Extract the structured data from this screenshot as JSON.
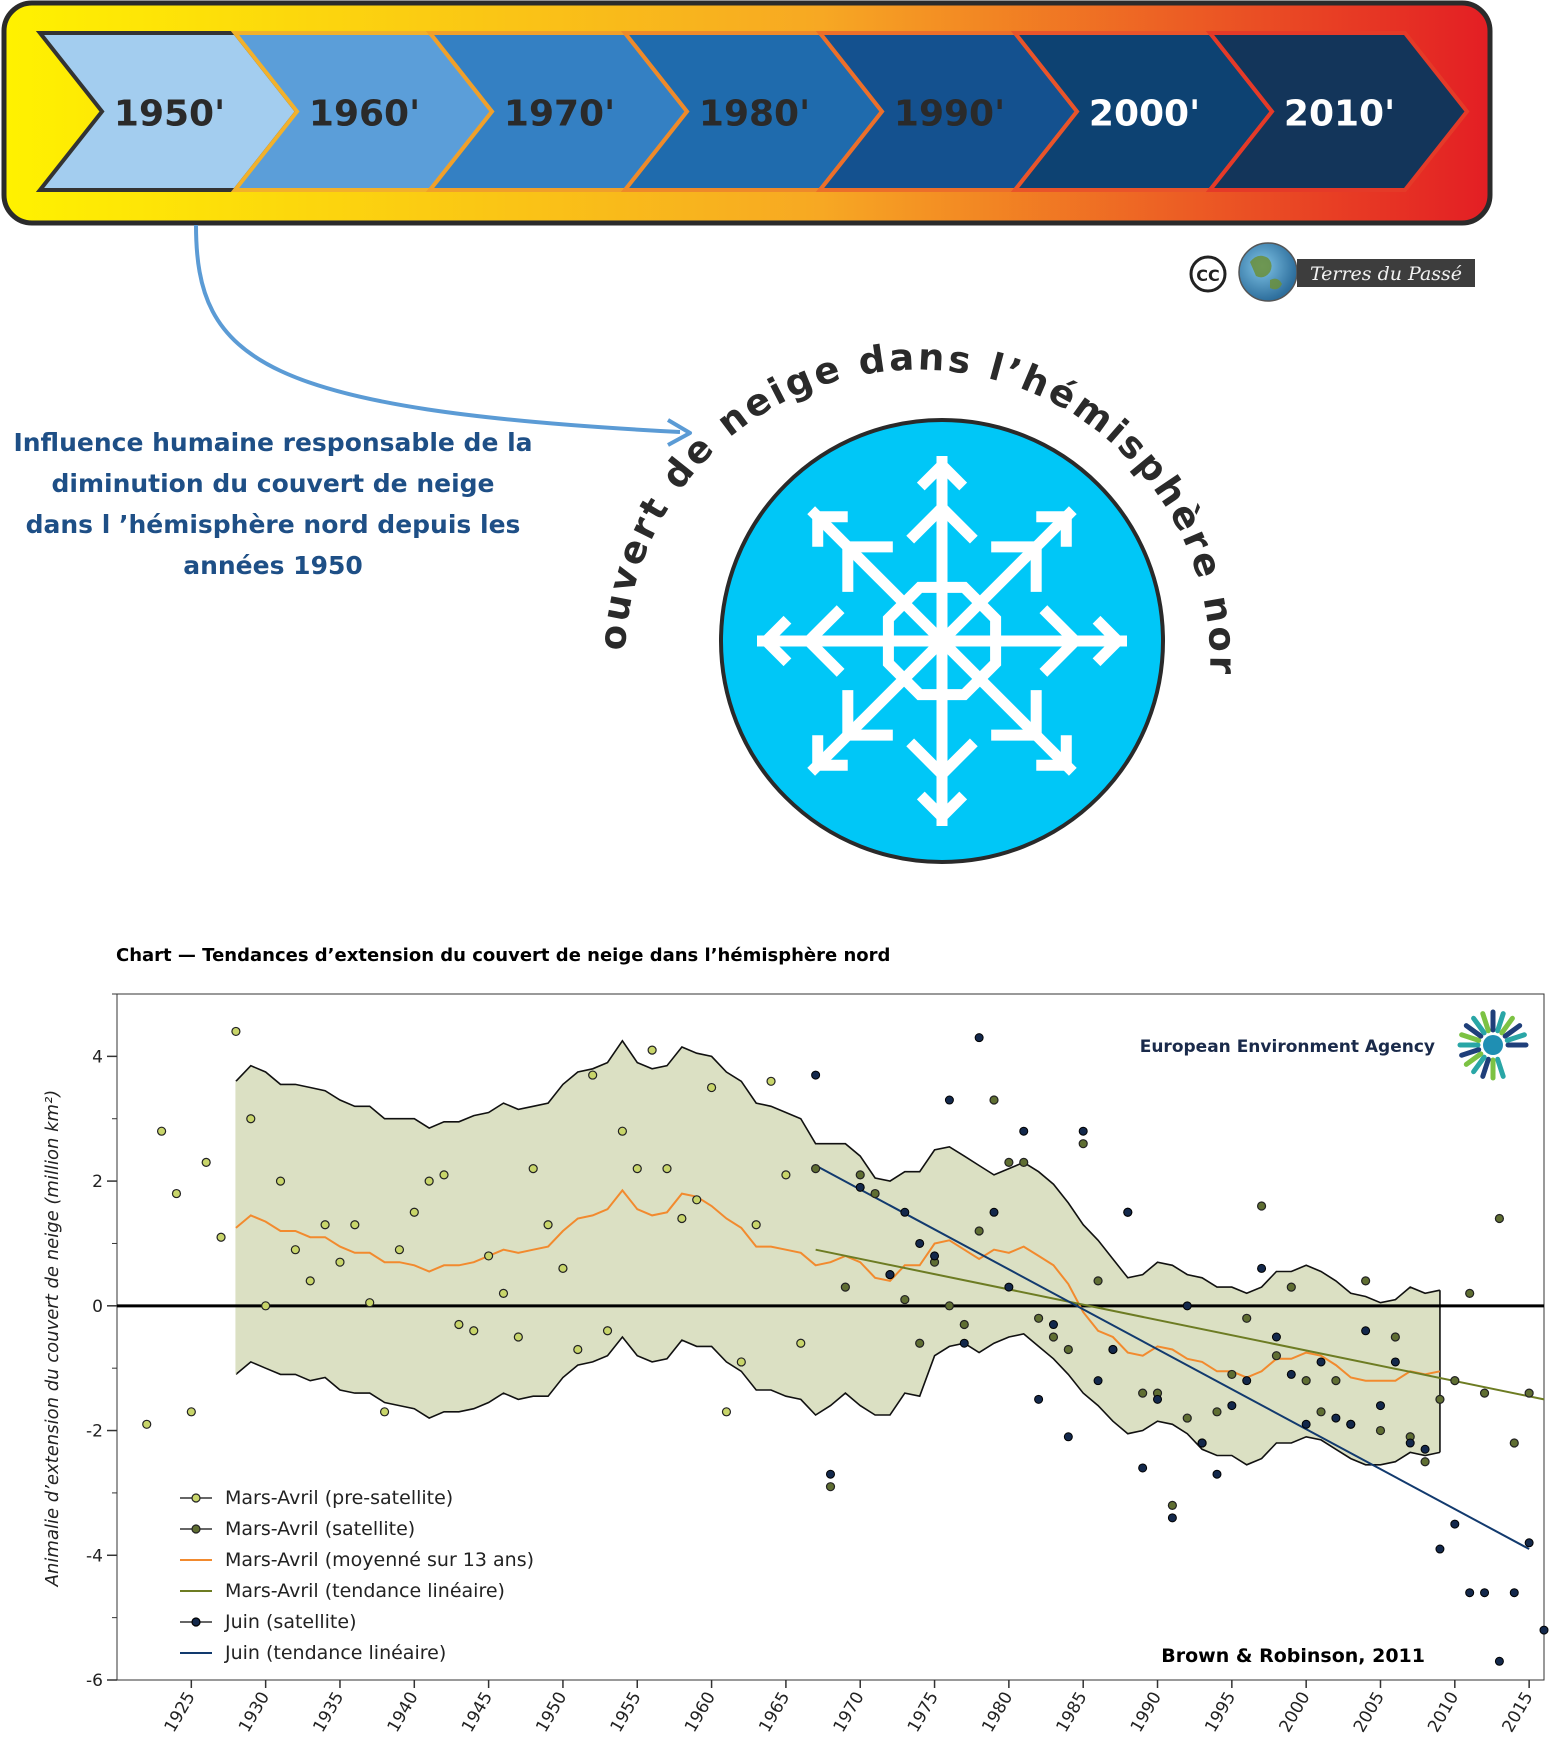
{
  "timeline": {
    "decades": [
      "1950'",
      "1960'",
      "1970'",
      "1980'",
      "1990'",
      "2000'",
      "2010'"
    ],
    "highlighted": "1950'"
  },
  "attribution": {
    "cc_mark": "CC",
    "brand": "Terres du Passé"
  },
  "statement": {
    "lines": [
      "Influence humaine responsable de la",
      "diminution du couvert de neige",
      "dans l ’hémisphère nord depuis les",
      "années 1950"
    ]
  },
  "badge": {
    "arc_text": "Couvert de neige dans l’hémisphère nord",
    "icon": "snowflake-icon"
  },
  "colors": {
    "decade_fills": [
      "#a3cdef",
      "#5b9ed9",
      "#3480c3",
      "#1f6bad",
      "#14518f",
      "#0d4272",
      "#13355a"
    ],
    "gradient": [
      "#fff200",
      "#f7a823",
      "#e31e24"
    ],
    "badge_circle": "#00c7f7",
    "statement_text": "#1e4f86",
    "band_fill": "#dbe0c3",
    "moving_avg": "#f28a2e",
    "ma_trend": "#6d7c23",
    "june_trend": "#123a6e",
    "presat_marker": "#c8d56a",
    "sat_marker": "#5f6e32",
    "june_marker": "#13284b"
  },
  "chart_data": {
    "type": "scatter",
    "title": "Chart — Tendances d’extension du couvert de neige dans l’hémisphère nord",
    "ylabel": "Animalie d’extension du couvert de neige (million km²)",
    "xlabel": "",
    "xlim": [
      1920,
      2016
    ],
    "ylim": [
      -6,
      5
    ],
    "x_ticks": [
      1925,
      1930,
      1935,
      1940,
      1945,
      1950,
      1955,
      1960,
      1965,
      1970,
      1975,
      1980,
      1985,
      1990,
      1995,
      2000,
      2005,
      2010,
      2015
    ],
    "y_ticks": [
      -6,
      -4,
      -2,
      0,
      2,
      4
    ],
    "source_logo": "European Environment Agency",
    "citation": "Brown & Robinson, 2011",
    "legend_position": "bottom-left",
    "legend": [
      "Mars-Avril (pre-satellite)",
      "Mars-Avril (satellite)",
      "Mars-Avril (moyenné sur 13 ans)",
      "Mars-Avril (tendance linéaire)",
      "Juin (satellite)",
      "Juin (tendance linéaire)"
    ],
    "march_april_presat": [
      [
        1922,
        -1.9
      ],
      [
        1923,
        2.8
      ],
      [
        1924,
        1.8
      ],
      [
        1925,
        -1.7
      ],
      [
        1926,
        2.3
      ],
      [
        1927,
        1.1
      ],
      [
        1928,
        4.4
      ],
      [
        1929,
        3.0
      ],
      [
        1930,
        0.0
      ],
      [
        1931,
        2.0
      ],
      [
        1932,
        0.9
      ],
      [
        1933,
        0.4
      ],
      [
        1934,
        1.3
      ],
      [
        1935,
        0.7
      ],
      [
        1936,
        1.3
      ],
      [
        1937,
        0.05
      ],
      [
        1938,
        -1.7
      ],
      [
        1939,
        0.9
      ],
      [
        1940,
        1.5
      ],
      [
        1941,
        2.0
      ],
      [
        1942,
        2.1
      ],
      [
        1943,
        -0.3
      ],
      [
        1944,
        -0.4
      ],
      [
        1945,
        0.8
      ],
      [
        1946,
        0.2
      ],
      [
        1947,
        -0.5
      ],
      [
        1948,
        2.2
      ],
      [
        1949,
        1.3
      ],
      [
        1950,
        0.6
      ],
      [
        1951,
        -0.7
      ],
      [
        1952,
        3.7
      ],
      [
        1953,
        -0.4
      ],
      [
        1954,
        2.8
      ],
      [
        1955,
        2.2
      ],
      [
        1956,
        4.1
      ],
      [
        1957,
        2.2
      ],
      [
        1958,
        1.4
      ],
      [
        1959,
        1.7
      ],
      [
        1960,
        3.5
      ],
      [
        1961,
        -1.7
      ],
      [
        1962,
        -0.9
      ],
      [
        1963,
        1.3
      ],
      [
        1964,
        3.6
      ],
      [
        1965,
        2.1
      ],
      [
        1966,
        -0.6
      ]
    ],
    "march_april_sat": [
      [
        1967,
        2.2
      ],
      [
        1968,
        -2.9
      ],
      [
        1969,
        0.3
      ],
      [
        1970,
        2.1
      ],
      [
        1971,
        1.8
      ],
      [
        1972,
        0.5
      ],
      [
        1973,
        0.1
      ],
      [
        1974,
        -0.6
      ],
      [
        1975,
        0.7
      ],
      [
        1976,
        0.0
      ],
      [
        1977,
        -0.3
      ],
      [
        1978,
        1.2
      ],
      [
        1979,
        3.3
      ],
      [
        1980,
        2.3
      ],
      [
        1981,
        2.3
      ],
      [
        1982,
        -0.2
      ],
      [
        1983,
        -0.5
      ],
      [
        1984,
        -0.7
      ],
      [
        1985,
        2.6
      ],
      [
        1986,
        0.4
      ],
      [
        1987,
        -0.7
      ],
      [
        1988,
        1.5
      ],
      [
        1989,
        -1.4
      ],
      [
        1990,
        -1.4
      ],
      [
        1991,
        -3.2
      ],
      [
        1992,
        -1.8
      ],
      [
        1993,
        -2.2
      ],
      [
        1994,
        -1.7
      ],
      [
        1995,
        -1.1
      ],
      [
        1996,
        -0.2
      ],
      [
        1997,
        1.6
      ],
      [
        1998,
        -0.8
      ],
      [
        1999,
        0.3
      ],
      [
        2000,
        -1.2
      ],
      [
        2001,
        -1.7
      ],
      [
        2002,
        -1.2
      ],
      [
        2003,
        -1.9
      ],
      [
        2004,
        0.4
      ],
      [
        2005,
        -2.0
      ],
      [
        2006,
        -0.5
      ],
      [
        2007,
        -2.1
      ],
      [
        2008,
        -2.5
      ],
      [
        2009,
        -1.5
      ],
      [
        2010,
        -1.2
      ],
      [
        2011,
        0.2
      ],
      [
        2012,
        -1.4
      ],
      [
        2013,
        1.4
      ],
      [
        2014,
        -2.2
      ],
      [
        2015,
        -1.4
      ]
    ],
    "march_april_sat_markers_from_year": 1967,
    "june_sat": [
      [
        1967,
        3.7
      ],
      [
        1968,
        -2.7
      ],
      [
        1970,
        1.9
      ],
      [
        1972,
        0.5
      ],
      [
        1973,
        1.5
      ],
      [
        1974,
        1.0
      ],
      [
        1975,
        0.8
      ],
      [
        1976,
        3.3
      ],
      [
        1977,
        -0.6
      ],
      [
        1978,
        4.3
      ],
      [
        1979,
        1.5
      ],
      [
        1980,
        0.3
      ],
      [
        1981,
        2.8
      ],
      [
        1982,
        -1.5
      ],
      [
        1983,
        -0.3
      ],
      [
        1984,
        -2.1
      ],
      [
        1985,
        2.8
      ],
      [
        1986,
        -1.2
      ],
      [
        1987,
        -0.7
      ],
      [
        1988,
        1.5
      ],
      [
        1989,
        -2.6
      ],
      [
        1990,
        -1.5
      ],
      [
        1991,
        -3.4
      ],
      [
        1992,
        0.0
      ],
      [
        1993,
        -2.2
      ],
      [
        1994,
        -2.7
      ],
      [
        1995,
        -1.6
      ],
      [
        1996,
        -1.2
      ],
      [
        1997,
        0.6
      ],
      [
        1998,
        -0.5
      ],
      [
        1999,
        -1.1
      ],
      [
        2000,
        -1.9
      ],
      [
        2001,
        -0.9
      ],
      [
        2002,
        -1.8
      ],
      [
        2003,
        -1.9
      ],
      [
        2004,
        -0.4
      ],
      [
        2005,
        -1.6
      ],
      [
        2006,
        -0.9
      ],
      [
        2007,
        -2.2
      ],
      [
        2008,
        -2.3
      ],
      [
        2009,
        -3.9
      ],
      [
        2010,
        -3.5
      ],
      [
        2011,
        -4.6
      ],
      [
        2012,
        -4.6
      ],
      [
        2013,
        -5.7
      ],
      [
        2014,
        -4.6
      ],
      [
        2015,
        -3.8
      ],
      [
        2016,
        -5.2
      ]
    ],
    "moving_average_13yr": [
      [
        1928,
        1.25
      ],
      [
        1929,
        1.45
      ],
      [
        1930,
        1.35
      ],
      [
        1931,
        1.2
      ],
      [
        1932,
        1.2
      ],
      [
        1933,
        1.1
      ],
      [
        1934,
        1.1
      ],
      [
        1935,
        0.95
      ],
      [
        1936,
        0.85
      ],
      [
        1937,
        0.85
      ],
      [
        1938,
        0.7
      ],
      [
        1939,
        0.7
      ],
      [
        1940,
        0.65
      ],
      [
        1941,
        0.55
      ],
      [
        1942,
        0.65
      ],
      [
        1943,
        0.65
      ],
      [
        1944,
        0.7
      ],
      [
        1945,
        0.8
      ],
      [
        1946,
        0.9
      ],
      [
        1947,
        0.85
      ],
      [
        1948,
        0.9
      ],
      [
        1949,
        0.95
      ],
      [
        1950,
        1.2
      ],
      [
        1951,
        1.4
      ],
      [
        1952,
        1.45
      ],
      [
        1953,
        1.55
      ],
      [
        1954,
        1.85
      ],
      [
        1955,
        1.55
      ],
      [
        1956,
        1.45
      ],
      [
        1957,
        1.5
      ],
      [
        1958,
        1.8
      ],
      [
        1959,
        1.75
      ],
      [
        1960,
        1.6
      ],
      [
        1961,
        1.4
      ],
      [
        1962,
        1.25
      ],
      [
        1963,
        0.95
      ],
      [
        1964,
        0.95
      ],
      [
        1965,
        0.9
      ],
      [
        1966,
        0.85
      ],
      [
        1967,
        0.65
      ],
      [
        1968,
        0.7
      ],
      [
        1969,
        0.8
      ],
      [
        1970,
        0.7
      ],
      [
        1971,
        0.45
      ],
      [
        1972,
        0.4
      ],
      [
        1973,
        0.65
      ],
      [
        1974,
        0.65
      ],
      [
        1975,
        1.0
      ],
      [
        1976,
        1.05
      ],
      [
        1977,
        0.9
      ],
      [
        1978,
        0.75
      ],
      [
        1979,
        0.9
      ],
      [
        1980,
        0.85
      ],
      [
        1981,
        0.95
      ],
      [
        1982,
        0.8
      ],
      [
        1983,
        0.65
      ],
      [
        1984,
        0.35
      ],
      [
        1985,
        -0.1
      ],
      [
        1986,
        -0.4
      ],
      [
        1987,
        -0.5
      ],
      [
        1988,
        -0.75
      ],
      [
        1989,
        -0.8
      ],
      [
        1990,
        -0.65
      ],
      [
        1991,
        -0.7
      ],
      [
        1992,
        -0.85
      ],
      [
        1993,
        -0.9
      ],
      [
        1994,
        -1.05
      ],
      [
        1995,
        -1.05
      ],
      [
        1996,
        -1.15
      ],
      [
        1997,
        -1.05
      ],
      [
        1998,
        -0.85
      ],
      [
        1999,
        -0.85
      ],
      [
        2000,
        -0.75
      ],
      [
        2001,
        -0.8
      ],
      [
        2002,
        -0.95
      ],
      [
        2003,
        -1.15
      ],
      [
        2004,
        -1.2
      ],
      [
        2005,
        -1.2
      ],
      [
        2006,
        -1.2
      ],
      [
        2007,
        -1.05
      ],
      [
        2008,
        -1.1
      ],
      [
        2009,
        -1.05
      ]
    ],
    "range_upper": [
      [
        1928,
        3.6
      ],
      [
        1929,
        3.85
      ],
      [
        1930,
        3.75
      ],
      [
        1931,
        3.55
      ],
      [
        1932,
        3.55
      ],
      [
        1933,
        3.5
      ],
      [
        1934,
        3.45
      ],
      [
        1935,
        3.3
      ],
      [
        1936,
        3.2
      ],
      [
        1937,
        3.2
      ],
      [
        1938,
        3.0
      ],
      [
        1939,
        3.0
      ],
      [
        1940,
        3.0
      ],
      [
        1941,
        2.85
      ],
      [
        1942,
        2.95
      ],
      [
        1943,
        2.95
      ],
      [
        1944,
        3.05
      ],
      [
        1945,
        3.1
      ],
      [
        1946,
        3.25
      ],
      [
        1947,
        3.15
      ],
      [
        1948,
        3.2
      ],
      [
        1949,
        3.25
      ],
      [
        1950,
        3.55
      ],
      [
        1951,
        3.75
      ],
      [
        1952,
        3.8
      ],
      [
        1953,
        3.9
      ],
      [
        1954,
        4.25
      ],
      [
        1955,
        3.9
      ],
      [
        1956,
        3.8
      ],
      [
        1957,
        3.85
      ],
      [
        1958,
        4.15
      ],
      [
        1959,
        4.05
      ],
      [
        1960,
        4.0
      ],
      [
        1961,
        3.75
      ],
      [
        1962,
        3.6
      ],
      [
        1963,
        3.25
      ],
      [
        1964,
        3.2
      ],
      [
        1965,
        3.1
      ],
      [
        1966,
        3.0
      ],
      [
        1967,
        2.6
      ],
      [
        1968,
        2.6
      ],
      [
        1969,
        2.6
      ],
      [
        1970,
        2.4
      ],
      [
        1971,
        2.05
      ],
      [
        1972,
        2.0
      ],
      [
        1973,
        2.15
      ],
      [
        1974,
        2.15
      ],
      [
        1975,
        2.5
      ],
      [
        1976,
        2.55
      ],
      [
        1977,
        2.4
      ],
      [
        1978,
        2.25
      ],
      [
        1979,
        2.1
      ],
      [
        1980,
        2.2
      ],
      [
        1981,
        2.3
      ],
      [
        1982,
        2.15
      ],
      [
        1983,
        1.95
      ],
      [
        1984,
        1.65
      ],
      [
        1985,
        1.3
      ],
      [
        1986,
        1.05
      ],
      [
        1987,
        0.75
      ],
      [
        1988,
        0.45
      ],
      [
        1989,
        0.5
      ],
      [
        1990,
        0.7
      ],
      [
        1991,
        0.65
      ],
      [
        1992,
        0.5
      ],
      [
        1993,
        0.45
      ],
      [
        1994,
        0.3
      ],
      [
        1995,
        0.3
      ],
      [
        1996,
        0.2
      ],
      [
        1997,
        0.3
      ],
      [
        1998,
        0.55
      ],
      [
        1999,
        0.55
      ],
      [
        2000,
        0.65
      ],
      [
        2001,
        0.55
      ],
      [
        2002,
        0.4
      ],
      [
        2003,
        0.2
      ],
      [
        2004,
        0.15
      ],
      [
        2005,
        0.05
      ],
      [
        2006,
        0.1
      ],
      [
        2007,
        0.3
      ],
      [
        2008,
        0.2
      ],
      [
        2009,
        0.25
      ]
    ],
    "range_lower": [
      [
        1928,
        -1.1
      ],
      [
        1929,
        -0.9
      ],
      [
        1930,
        -1.0
      ],
      [
        1931,
        -1.1
      ],
      [
        1932,
        -1.1
      ],
      [
        1933,
        -1.2
      ],
      [
        1934,
        -1.15
      ],
      [
        1935,
        -1.35
      ],
      [
        1936,
        -1.4
      ],
      [
        1937,
        -1.4
      ],
      [
        1938,
        -1.55
      ],
      [
        1939,
        -1.6
      ],
      [
        1940,
        -1.65
      ],
      [
        1941,
        -1.8
      ],
      [
        1942,
        -1.7
      ],
      [
        1943,
        -1.7
      ],
      [
        1944,
        -1.65
      ],
      [
        1945,
        -1.55
      ],
      [
        1946,
        -1.4
      ],
      [
        1947,
        -1.5
      ],
      [
        1948,
        -1.45
      ],
      [
        1949,
        -1.45
      ],
      [
        1950,
        -1.15
      ],
      [
        1951,
        -0.95
      ],
      [
        1952,
        -0.9
      ],
      [
        1953,
        -0.8
      ],
      [
        1954,
        -0.5
      ],
      [
        1955,
        -0.8
      ],
      [
        1956,
        -0.9
      ],
      [
        1957,
        -0.85
      ],
      [
        1958,
        -0.55
      ],
      [
        1959,
        -0.65
      ],
      [
        1960,
        -0.65
      ],
      [
        1961,
        -0.9
      ],
      [
        1962,
        -1.05
      ],
      [
        1963,
        -1.35
      ],
      [
        1964,
        -1.35
      ],
      [
        1965,
        -1.45
      ],
      [
        1966,
        -1.5
      ],
      [
        1967,
        -1.75
      ],
      [
        1968,
        -1.6
      ],
      [
        1969,
        -1.4
      ],
      [
        1970,
        -1.6
      ],
      [
        1971,
        -1.75
      ],
      [
        1972,
        -1.75
      ],
      [
        1973,
        -1.4
      ],
      [
        1974,
        -1.45
      ],
      [
        1975,
        -0.8
      ],
      [
        1976,
        -0.65
      ],
      [
        1977,
        -0.6
      ],
      [
        1978,
        -0.75
      ],
      [
        1979,
        -0.6
      ],
      [
        1980,
        -0.5
      ],
      [
        1981,
        -0.45
      ],
      [
        1982,
        -0.65
      ],
      [
        1983,
        -0.85
      ],
      [
        1984,
        -1.1
      ],
      [
        1985,
        -1.4
      ],
      [
        1986,
        -1.6
      ],
      [
        1987,
        -1.85
      ],
      [
        1988,
        -2.05
      ],
      [
        1989,
        -2.0
      ],
      [
        1990,
        -1.85
      ],
      [
        1991,
        -1.9
      ],
      [
        1992,
        -2.05
      ],
      [
        1993,
        -2.3
      ],
      [
        1994,
        -2.4
      ],
      [
        1995,
        -2.4
      ],
      [
        1996,
        -2.55
      ],
      [
        1997,
        -2.45
      ],
      [
        1998,
        -2.2
      ],
      [
        1999,
        -2.2
      ],
      [
        2000,
        -2.1
      ],
      [
        2001,
        -2.15
      ],
      [
        2002,
        -2.3
      ],
      [
        2003,
        -2.45
      ],
      [
        2004,
        -2.55
      ],
      [
        2005,
        -2.55
      ],
      [
        2006,
        -2.5
      ],
      [
        2007,
        -2.35
      ],
      [
        2008,
        -2.4
      ],
      [
        2009,
        -2.35
      ]
    ],
    "ma_trend_line": [
      [
        1967,
        0.9
      ],
      [
        2016,
        -1.5
      ]
    ],
    "june_trend_line": [
      [
        1967,
        2.25
      ],
      [
        2015,
        -3.9
      ]
    ]
  }
}
